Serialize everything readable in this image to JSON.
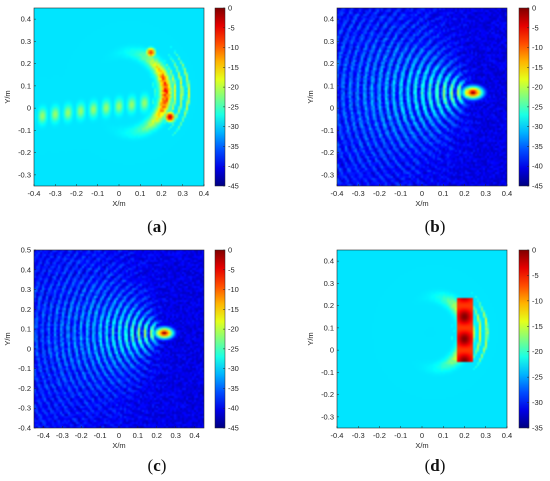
{
  "chart_data": [
    {
      "type": "heatmap",
      "panel": "a",
      "caption": "(a)",
      "xlabel": "X/m",
      "ylabel": "Y/m",
      "xlim": [
        -0.4,
        0.4
      ],
      "ylim": [
        -0.35,
        0.45
      ],
      "xticks": [
        "-0.4",
        "-0.3",
        "-0.2",
        "-0.1",
        "0",
        "0.1",
        "0.2",
        "0.3",
        "0.4"
      ],
      "yticks": [
        "-0.3",
        "-0.2",
        "-0.1",
        "0",
        "0.1",
        "0.2",
        "0.3",
        "0.4"
      ],
      "clim": [
        -45,
        0
      ],
      "cticks": [
        "0",
        "-5",
        "-10",
        "-15",
        "-20",
        "-25",
        "-30",
        "-35",
        "-40",
        "-45"
      ],
      "colormap": "jet",
      "description_values": {
        "focus_arc_center": [
          0.04,
          0.07
        ],
        "focus_arc_radius": 0.18,
        "hotspots": [
          [
            0.15,
            0.25,
            -8
          ],
          [
            0.24,
            -0.04,
            -3
          ]
        ]
      }
    },
    {
      "type": "heatmap",
      "panel": "b",
      "caption": "(b)",
      "xlabel": "X/m",
      "ylabel": "Y/m",
      "xlim": [
        -0.4,
        0.4
      ],
      "ylim": [
        -0.35,
        0.45
      ],
      "xticks": [
        "-0.4",
        "-0.3",
        "-0.2",
        "-0.1",
        "0",
        "0.1",
        "0.2",
        "0.3",
        "0.4"
      ],
      "yticks": [
        "-0.3",
        "-0.2",
        "-0.1",
        "0",
        "0.1",
        "0.2",
        "0.3",
        "0.4"
      ],
      "clim": [
        -45,
        0
      ],
      "cticks": [
        "0",
        "-5",
        "-10",
        "-15",
        "-20",
        "-25",
        "-30",
        "-35",
        "-40",
        "-45"
      ],
      "colormap": "jet",
      "description_values": {
        "focus": [
          0.24,
          0.07
        ],
        "peak_db": 0
      }
    },
    {
      "type": "heatmap",
      "panel": "c",
      "caption": "(c)",
      "xlabel": "X/m",
      "ylabel": "Y/m",
      "xlim": [
        -0.45,
        0.45
      ],
      "ylim": [
        -0.4,
        0.5
      ],
      "xticks": [
        "-0.4",
        "-0.3",
        "-0.2",
        "-0.1",
        "0",
        "0.1",
        "0.2",
        "0.3",
        "0.4"
      ],
      "yticks": [
        "-0.4",
        "-0.3",
        "-0.2",
        "-0.1",
        "0",
        "0.1",
        "0.2",
        "0.3",
        "0.4",
        "0.5"
      ],
      "clim": [
        -45,
        0
      ],
      "cticks": [
        "0",
        "-5",
        "-10",
        "-15",
        "-20",
        "-25",
        "-30",
        "-35",
        "-40",
        "-45"
      ],
      "colormap": "jet",
      "description_values": {
        "focus": [
          0.24,
          0.08
        ],
        "peak_db": 0
      }
    },
    {
      "type": "heatmap",
      "panel": "d",
      "caption": "(d)",
      "xlabel": "X/m",
      "ylabel": "Y/m",
      "xlim": [
        -0.4,
        0.4
      ],
      "ylim": [
        -0.35,
        0.45
      ],
      "xticks": [
        "-0.4",
        "-0.3",
        "-0.2",
        "-0.1",
        "0",
        "0.1",
        "0.2",
        "0.3",
        "0.4"
      ],
      "yticks": [
        "-0.3",
        "-0.2",
        "-0.1",
        "0",
        "0.1",
        "0.2",
        "0.3",
        "0.4"
      ],
      "clim": [
        -35,
        0
      ],
      "cticks": [
        "0",
        "-5",
        "-10",
        "-15",
        "-20",
        "-25",
        "-30",
        "-35"
      ],
      "colormap": "jet",
      "description_values": {
        "focus_arc_center": [
          0.05,
          0.08
        ],
        "focus_arc_radius": 0.16,
        "hot_band_x": 0.2,
        "hot_band_y_range": [
          -0.05,
          0.23
        ]
      }
    }
  ]
}
